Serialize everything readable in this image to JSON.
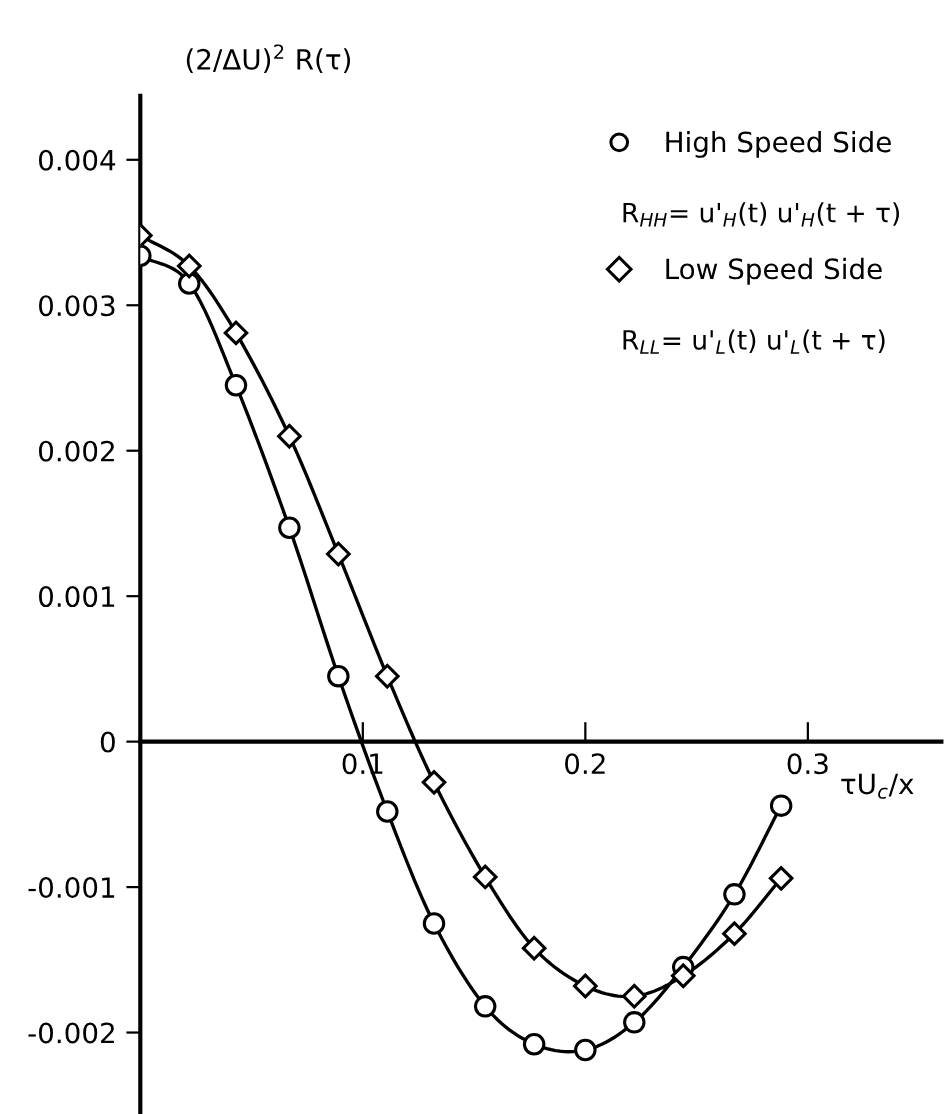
{
  "chart_data": {
    "type": "line",
    "ylabel": "(2/ΔU)$^{2}$ R(τ)",
    "xlabel": "τU$_{c}$/x",
    "x": [
      0,
      0.022,
      0.043,
      0.067,
      0.089,
      0.111,
      0.132,
      0.155,
      0.177,
      0.2,
      0.222,
      0.244,
      0.267,
      0.288
    ],
    "series": [
      {
        "name": "High Speed Side",
        "color": "#000000",
        "marker": "circle",
        "values": [
          0.00334,
          0.00315,
          0.00245,
          0.00147,
          0.00045,
          -0.00048,
          -0.00125,
          -0.00182,
          -0.00208,
          -0.00212,
          -0.00193,
          -0.00155,
          -0.00105,
          -0.00044
        ]
      },
      {
        "name": "Low Speed Side",
        "color": "#000000",
        "marker": "diamond",
        "values": [
          0.00348,
          0.00327,
          0.00281,
          0.0021,
          0.00129,
          0.00045,
          -0.00028,
          -0.00093,
          -0.00142,
          -0.00168,
          -0.00175,
          -0.00161,
          -0.00132,
          -0.00094
        ]
      }
    ],
    "annotations": [
      "R$_{HH}$= u'$_{H}$(t) u'$_{H}$(t + τ)",
      "R$_{LL}$= u'$_{L}$(t) u'$_{L}$(t + τ)"
    ],
    "xlim": [
      0,
      0.36
    ],
    "ylim": [
      -0.00256,
      0.00444
    ],
    "xticks": [
      0.1,
      0.2,
      0.3
    ],
    "yticks": [
      -0.002,
      -0.001,
      0,
      0.001,
      0.002,
      0.003,
      0.004
    ],
    "grid": false,
    "legend": "top right",
    "line_style": "solid"
  }
}
